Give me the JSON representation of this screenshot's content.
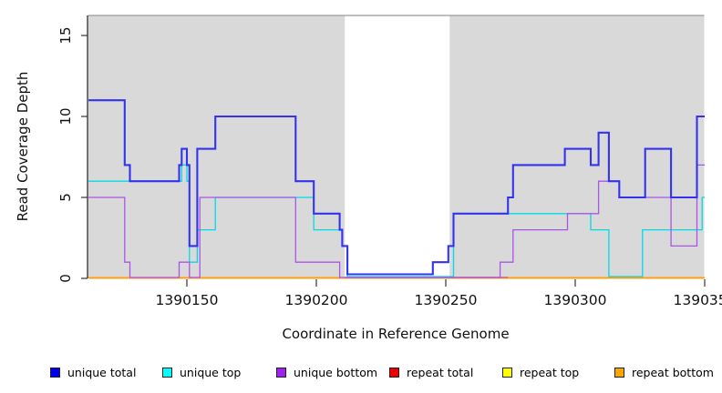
{
  "chart_data": {
    "type": "line",
    "subtype": "step-coverage-plot",
    "title": "",
    "xlabel": "Coordinate in Reference Genome",
    "ylabel": "Read Coverage Depth",
    "x_ticks": [
      1390150,
      1390200,
      1390250,
      1390300,
      1390350
    ],
    "y_ticks": [
      0,
      5,
      10,
      15
    ],
    "x_range": [
      1390112,
      1390350
    ],
    "ylim": [
      0,
      16.2
    ],
    "grid": "off",
    "plot_background": "#d9d9d9",
    "gap_region": {
      "x_start": 1390211,
      "x_end": 1390251.5,
      "color": "#ffffff"
    },
    "legend_position": "bottom",
    "series": [
      {
        "name": "unique total",
        "key": "unique_total",
        "color": "#3333ee",
        "points": [
          [
            1390112,
            11
          ],
          [
            1390126,
            7
          ],
          [
            1390128,
            6
          ],
          [
            1390147,
            7
          ],
          [
            1390148,
            8
          ],
          [
            1390150,
            7
          ],
          [
            1390151,
            2
          ],
          [
            1390154,
            8
          ],
          [
            1390161,
            10
          ],
          [
            1390192,
            6
          ],
          [
            1390199,
            4
          ],
          [
            1390209,
            3
          ],
          [
            1390210,
            2
          ],
          [
            1390212,
            0
          ],
          [
            1390245,
            1
          ],
          [
            1390251,
            2
          ],
          [
            1390253,
            4
          ],
          [
            1390274,
            5
          ],
          [
            1390276,
            7
          ],
          [
            1390296,
            8
          ],
          [
            1390306,
            7
          ],
          [
            1390309,
            9
          ],
          [
            1390313,
            6
          ],
          [
            1390317,
            5
          ],
          [
            1390327,
            8
          ],
          [
            1390337,
            5
          ],
          [
            1390347,
            10
          ]
        ],
        "x_end": 1390350
      },
      {
        "name": "unique top",
        "key": "unique_top",
        "color": "#00dbe8",
        "points": [
          [
            1390112,
            6
          ],
          [
            1390148,
            7
          ],
          [
            1390150,
            6
          ],
          [
            1390151,
            1
          ],
          [
            1390154,
            3
          ],
          [
            1390161,
            5
          ],
          [
            1390199,
            3
          ],
          [
            1390210,
            2
          ],
          [
            1390212,
            0
          ],
          [
            1390253,
            4
          ],
          [
            1390306,
            3
          ],
          [
            1390313,
            0
          ],
          [
            1390326,
            3
          ],
          [
            1390349,
            5
          ]
        ],
        "x_end": 1390350
      },
      {
        "name": "unique bottom",
        "key": "unique_bottom",
        "color": "#aa55e8",
        "points": [
          [
            1390112,
            5
          ],
          [
            1390126,
            1
          ],
          [
            1390128,
            0
          ],
          [
            1390147,
            1
          ],
          [
            1390151,
            0
          ],
          [
            1390155,
            5
          ],
          [
            1390192,
            1
          ],
          [
            1390209,
            0
          ],
          [
            1390271,
            1
          ],
          [
            1390276,
            3
          ],
          [
            1390297,
            4
          ],
          [
            1390309,
            6
          ],
          [
            1390317,
            5
          ],
          [
            1390337,
            2
          ],
          [
            1390347,
            7
          ]
        ],
        "x_end": 1390350
      },
      {
        "name": "repeat total",
        "key": "repeat_total",
        "color": "#d4607f",
        "points": [
          [
            1390211,
            0
          ]
        ],
        "x_end": 1390274
      },
      {
        "name": "repeat top",
        "key": "repeat_top",
        "color": "#ffee00",
        "points": [
          [
            1390112,
            0
          ]
        ],
        "x_end": 1390350
      },
      {
        "name": "repeat bottom",
        "key": "repeat_bottom",
        "color": "#ff9f0f",
        "points": [
          [
            1390112,
            0
          ]
        ],
        "x_end": 1390350
      }
    ],
    "legend": [
      {
        "label": "unique total",
        "color": "#0000ee"
      },
      {
        "label": "unique top",
        "color": "#00ffff"
      },
      {
        "label": "unique bottom",
        "color": "#a020f0"
      },
      {
        "label": "repeat total",
        "color": "#ee0000"
      },
      {
        "label": "repeat top",
        "color": "#ffff00"
      },
      {
        "label": "repeat bottom",
        "color": "#ffa500"
      }
    ]
  }
}
